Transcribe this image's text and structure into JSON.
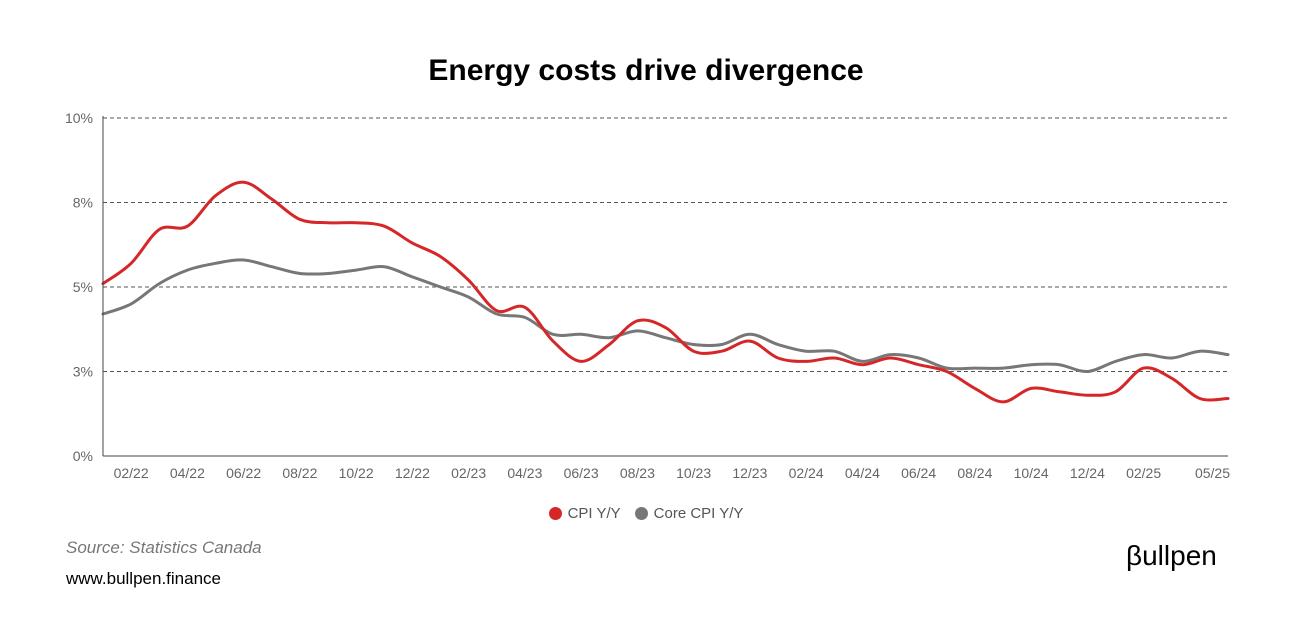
{
  "header": {
    "title": "Energy costs drive divergence"
  },
  "footer": {
    "source": "Source: Statistics Canada",
    "website": "www.bullpen.finance",
    "logo_text": "βullpen"
  },
  "chart_data": {
    "type": "line",
    "title": "Energy costs drive divergence",
    "xlabel": "",
    "ylabel": "",
    "ylim": [
      0,
      10
    ],
    "y_ticks": [
      "0%",
      "3%",
      "5%",
      "8%",
      "10%"
    ],
    "y_tick_values": [
      0,
      2.5,
      5,
      7.5,
      10
    ],
    "grid": "horizontal dashed",
    "legend_position": "bottom",
    "x_tick_labels": [
      "02/22",
      "04/22",
      "06/22",
      "08/22",
      "10/22",
      "12/22",
      "02/23",
      "04/23",
      "06/23",
      "08/23",
      "10/23",
      "12/23",
      "02/24",
      "04/24",
      "06/24",
      "08/24",
      "10/24",
      "12/24",
      "02/25",
      "05/25"
    ],
    "x": [
      "01/22",
      "02/22",
      "03/22",
      "04/22",
      "05/22",
      "06/22",
      "07/22",
      "08/22",
      "09/22",
      "10/22",
      "11/22",
      "12/22",
      "01/23",
      "02/23",
      "03/23",
      "04/23",
      "05/23",
      "06/23",
      "07/23",
      "08/23",
      "09/23",
      "10/23",
      "11/23",
      "12/23",
      "01/24",
      "02/24",
      "03/24",
      "04/24",
      "05/24",
      "06/24",
      "07/24",
      "08/24",
      "09/24",
      "10/24",
      "11/24",
      "12/24",
      "01/25",
      "02/25",
      "03/25",
      "04/25",
      "05/25"
    ],
    "series": [
      {
        "name": "CPI Y/Y",
        "color": "#d62728",
        "values": [
          5.1,
          5.7,
          6.7,
          6.8,
          7.7,
          8.1,
          7.6,
          7.0,
          6.9,
          6.9,
          6.8,
          6.3,
          5.9,
          5.2,
          4.3,
          4.4,
          3.4,
          2.8,
          3.3,
          4.0,
          3.8,
          3.1,
          3.1,
          3.4,
          2.9,
          2.8,
          2.9,
          2.7,
          2.9,
          2.7,
          2.5,
          2.0,
          1.6,
          2.0,
          1.9,
          1.8,
          1.9,
          2.6,
          2.3,
          1.7,
          1.7
        ]
      },
      {
        "name": "Core CPI Y/Y",
        "color": "#777777",
        "values": [
          4.2,
          4.5,
          5.1,
          5.5,
          5.7,
          5.8,
          5.6,
          5.4,
          5.4,
          5.5,
          5.6,
          5.3,
          5.0,
          4.7,
          4.2,
          4.1,
          3.6,
          3.6,
          3.5,
          3.7,
          3.5,
          3.3,
          3.3,
          3.6,
          3.3,
          3.1,
          3.1,
          2.8,
          3.0,
          2.9,
          2.6,
          2.6,
          2.6,
          2.7,
          2.7,
          2.5,
          2.8,
          3.0,
          2.9,
          3.1,
          3.0
        ]
      }
    ]
  }
}
